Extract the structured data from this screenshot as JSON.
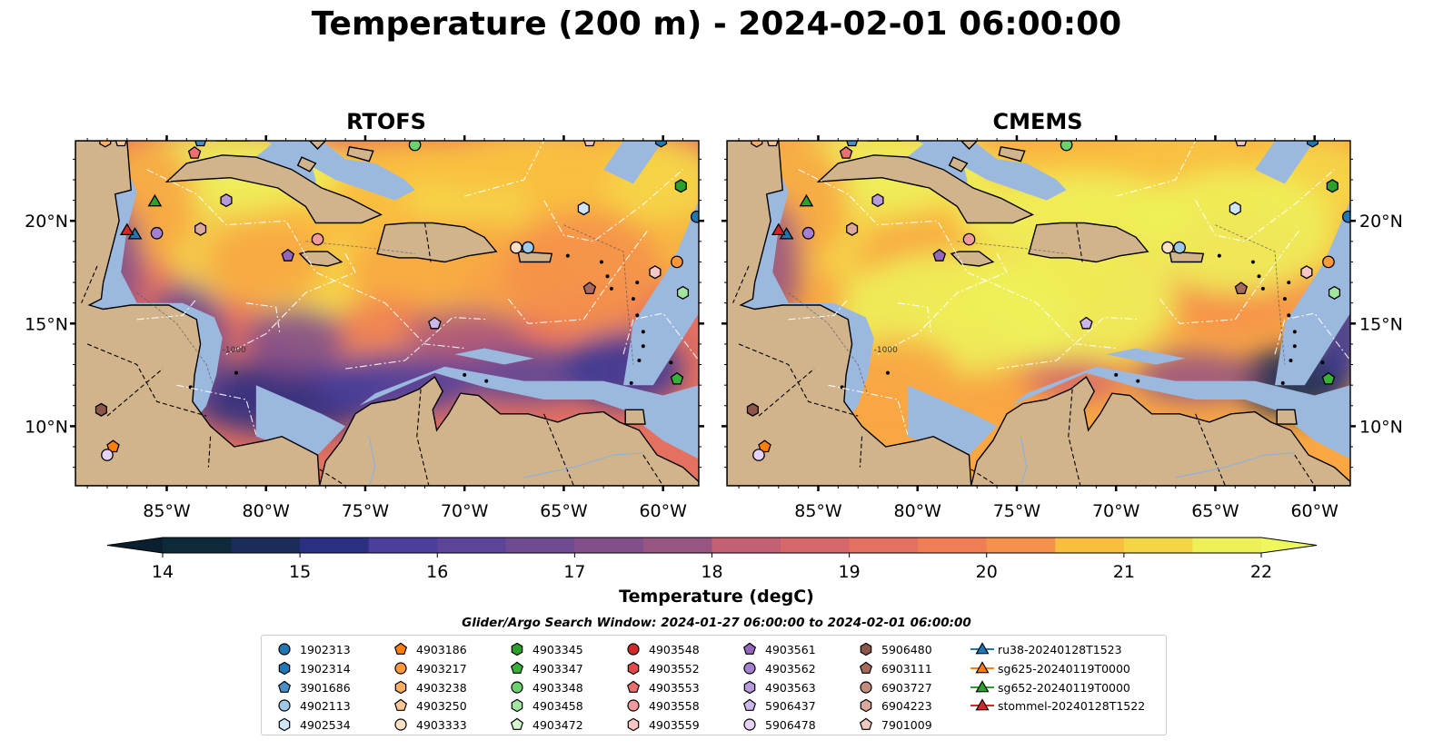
{
  "title": "Temperature (200 m) - 2024-02-01 06:00:00",
  "panels": [
    {
      "title": "RTOFS",
      "variant": "rtofs"
    },
    {
      "title": "CMEMS",
      "variant": "cmems"
    }
  ],
  "map": {
    "lon_range": [
      -89.6,
      -58.2
    ],
    "lat_range": [
      7.1,
      23.9
    ],
    "lon_ticks": [
      {
        "value": -85,
        "label": "85°W"
      },
      {
        "value": -80,
        "label": "80°W"
      },
      {
        "value": -75,
        "label": "75°W"
      },
      {
        "value": -70,
        "label": "70°W"
      },
      {
        "value": -65,
        "label": "65°W"
      },
      {
        "value": -60,
        "label": "60°W"
      }
    ],
    "lat_ticks": [
      {
        "value": 10,
        "label": "10°N"
      },
      {
        "value": 15,
        "label": "15°N"
      },
      {
        "value": 20,
        "label": "20°N"
      }
    ],
    "land_color": "#d2b48c",
    "shelf_color": "#9bb8de",
    "contour_label": "-1000"
  },
  "colorbar": {
    "label": "Temperature (degC)",
    "min": 14,
    "max": 22,
    "ticks": [
      "14",
      "15",
      "16",
      "17",
      "18",
      "19",
      "20",
      "21",
      "22"
    ],
    "colors": [
      "#0e2a3a",
      "#1b2b5a",
      "#2a2f82",
      "#3a3896",
      "#4a3f9c",
      "#5c4598",
      "#6e4b92",
      "#834f8b",
      "#985582",
      "#ac5a7a",
      "#c36073",
      "#d6676a",
      "#e47060",
      "#f07e55",
      "#f5914a",
      "#f8a743",
      "#f9bd3f",
      "#f5d548",
      "#eef05a"
    ],
    "under_color": "#0a2030",
    "over_color": "#eef85a"
  },
  "search_window": "Glider/Argo Search Window: 2024-01-27 06:00:00 to 2024-02-01 06:00:00",
  "legend": {
    "columns": [
      [
        {
          "label": "1902313",
          "marker": "circle",
          "color": "#1f77b4"
        },
        {
          "label": "1902314",
          "marker": "hexagon",
          "color": "#1f77b4"
        },
        {
          "label": "3901686",
          "marker": "pentagon",
          "color": "#4a90c8"
        },
        {
          "label": "4902113",
          "marker": "circle",
          "color": "#9ec9e8"
        },
        {
          "label": "4902534",
          "marker": "hexagon",
          "color": "#cfe6f7"
        }
      ],
      [
        {
          "label": "4903186",
          "marker": "pentagon",
          "color": "#ff7f0e"
        },
        {
          "label": "4903217",
          "marker": "circle",
          "color": "#ff9a3c"
        },
        {
          "label": "4903238",
          "marker": "hexagon",
          "color": "#ffad60"
        },
        {
          "label": "4903250",
          "marker": "pentagon",
          "color": "#ffc892"
        },
        {
          "label": "4903333",
          "marker": "circle",
          "color": "#ffe0c4"
        }
      ],
      [
        {
          "label": "4903345",
          "marker": "hexagon",
          "color": "#2ca02c"
        },
        {
          "label": "4903347",
          "marker": "pentagon",
          "color": "#36b236"
        },
        {
          "label": "4903348",
          "marker": "circle",
          "color": "#6cd06c"
        },
        {
          "label": "4903458",
          "marker": "hexagon",
          "color": "#a0e6a0"
        },
        {
          "label": "4903472",
          "marker": "pentagon",
          "color": "#d6f7d0"
        }
      ],
      [
        {
          "label": "4903548",
          "marker": "circle",
          "color": "#d62728"
        },
        {
          "label": "4903552",
          "marker": "hexagon",
          "color": "#e04a4a"
        },
        {
          "label": "4903553",
          "marker": "pentagon",
          "color": "#ea6f6f"
        },
        {
          "label": "4903558",
          "marker": "circle",
          "color": "#f49a98"
        },
        {
          "label": "4903559",
          "marker": "hexagon",
          "color": "#fbc7c4"
        }
      ],
      [
        {
          "label": "4903561",
          "marker": "pentagon",
          "color": "#9467bd"
        },
        {
          "label": "4903562",
          "marker": "circle",
          "color": "#a57fd0"
        },
        {
          "label": "4903563",
          "marker": "hexagon",
          "color": "#b899dc"
        },
        {
          "label": "5906437",
          "marker": "pentagon",
          "color": "#cdb6ea"
        },
        {
          "label": "5906478",
          "marker": "circle",
          "color": "#e6d2f6"
        }
      ],
      [
        {
          "label": "5906480",
          "marker": "hexagon",
          "color": "#8c564b"
        },
        {
          "label": "6903111",
          "marker": "pentagon",
          "color": "#a66a5c"
        },
        {
          "label": "6903727",
          "marker": "circle",
          "color": "#c48c7e"
        },
        {
          "label": "6904223",
          "marker": "hexagon",
          "color": "#dba89c"
        },
        {
          "label": "7901009",
          "marker": "pentagon",
          "color": "#f2c9bf"
        }
      ],
      [
        {
          "label": "ru38-20240128T1523",
          "marker": "triangle-line",
          "color": "#1f77b4"
        },
        {
          "label": "sg625-20240119T0000",
          "marker": "triangle-line",
          "color": "#ff7f0e"
        },
        {
          "label": "sg652-20240119T0000",
          "marker": "triangle-line",
          "color": "#2ca02c"
        },
        {
          "label": "stommel-20240128T1522",
          "marker": "triangle-line",
          "color": "#d62728"
        }
      ]
    ]
  },
  "observations": [
    {
      "id": "1902313",
      "lon": -58.3,
      "lat": 20.2
    },
    {
      "id": "1902314",
      "lon": -60.1,
      "lat": 23.9
    },
    {
      "id": "3901686",
      "lon": -83.3,
      "lat": 23.9
    },
    {
      "id": "4902113",
      "lon": -66.8,
      "lat": 18.7
    },
    {
      "id": "4902534",
      "lon": -64.0,
      "lat": 20.6
    },
    {
      "id": "4903186",
      "lon": -87.7,
      "lat": 9.0
    },
    {
      "id": "4903217",
      "lon": -59.3,
      "lat": 18.0
    },
    {
      "id": "4903238",
      "lon": -88.1,
      "lat": 23.9
    },
    {
      "id": "4903250",
      "lon": -87.3,
      "lat": 23.9
    },
    {
      "id": "4903333",
      "lon": -67.4,
      "lat": 18.7
    },
    {
      "id": "4903345",
      "lon": -59.1,
      "lat": 21.7
    },
    {
      "id": "4903347",
      "lon": -59.3,
      "lat": 12.3
    },
    {
      "id": "4903348",
      "lon": -72.5,
      "lat": 23.7
    },
    {
      "id": "4903458",
      "lon": -59.0,
      "lat": 16.5
    },
    {
      "id": "4903559",
      "lon": -60.4,
      "lat": 17.5
    },
    {
      "id": "4903553",
      "lon": -83.6,
      "lat": 23.3
    },
    {
      "id": "4903558",
      "lon": -77.4,
      "lat": 19.1
    },
    {
      "id": "4903561",
      "lon": -78.9,
      "lat": 18.3
    },
    {
      "id": "4903562",
      "lon": -85.5,
      "lat": 19.4
    },
    {
      "id": "4903563",
      "lon": -82.0,
      "lat": 21.0
    },
    {
      "id": "5906437",
      "lon": -71.5,
      "lat": 15.0
    },
    {
      "id": "5906478",
      "lon": -88.0,
      "lat": 8.6
    },
    {
      "id": "5906480",
      "lon": -88.3,
      "lat": 10.8
    },
    {
      "id": "6903111",
      "lon": -63.7,
      "lat": 16.7
    },
    {
      "id": "6904223",
      "lon": -83.3,
      "lat": 19.6
    },
    {
      "id": "7901009",
      "lon": -63.7,
      "lat": 23.9
    },
    {
      "id": "ru38-20240128T1523",
      "lon": -86.6,
      "lat": 19.3
    },
    {
      "id": "sg652-20240119T0000",
      "lon": -85.6,
      "lat": 20.9
    },
    {
      "id": "stommel-20240128T1522",
      "lon": -87.0,
      "lat": 19.5
    }
  ]
}
